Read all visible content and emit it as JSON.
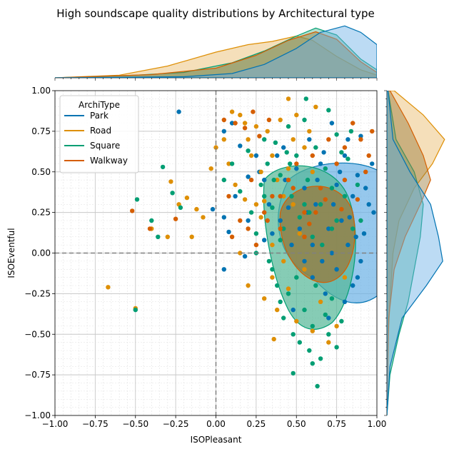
{
  "chart_data": {
    "type": "scatter",
    "title": "High soundscape quality distributions by Architectural type",
    "xlabel": "ISOPleasant",
    "ylabel": "ISOEventful",
    "xlim": [
      -1.0,
      1.0
    ],
    "ylim": [
      -1.0,
      1.0
    ],
    "x_ticks": [
      "−1.00",
      "−0.75",
      "−0.50",
      "−0.25",
      "0.00",
      "0.25",
      "0.50",
      "0.75",
      "1.00"
    ],
    "y_ticks": [
      "−1.00",
      "−0.75",
      "−0.50",
      "−0.25",
      "0.00",
      "0.25",
      "0.50",
      "0.75",
      "1.00"
    ],
    "x_tick_values": [
      -1.0,
      -0.75,
      -0.5,
      -0.25,
      0.0,
      0.25,
      0.5,
      0.75,
      1.0
    ],
    "y_tick_values": [
      -1.0,
      -0.75,
      -0.5,
      -0.25,
      0.0,
      0.25,
      0.5,
      0.75,
      1.0
    ],
    "grid": true,
    "reference_lines": {
      "x": 0.0,
      "y": 0.0
    },
    "legend": {
      "title": "ArchiType",
      "placement": "top-left"
    },
    "marginal_plots": "kde (top: ISOPleasant, right: ISOEventful)",
    "series": [
      {
        "name": "Park",
        "color": "#0173b2",
        "points": [
          [
            -0.23,
            0.87
          ],
          [
            0.05,
            0.75
          ],
          [
            0.1,
            0.8
          ],
          [
            0.15,
            0.66
          ],
          [
            0.2,
            0.47
          ],
          [
            0.25,
            0.6
          ],
          [
            0.3,
            0.45
          ],
          [
            0.35,
            0.12
          ],
          [
            0.42,
            0.65
          ],
          [
            0.45,
            0.28
          ],
          [
            0.5,
            0.52
          ],
          [
            0.55,
            0.4
          ],
          [
            0.58,
            0.7
          ],
          [
            0.62,
            0.3
          ],
          [
            0.65,
            0.55
          ],
          [
            0.7,
            0.15
          ],
          [
            0.72,
            0.8
          ],
          [
            0.75,
            0.42
          ],
          [
            0.78,
            0.2
          ],
          [
            0.8,
            0.6
          ],
          [
            0.82,
            0.05
          ],
          [
            0.85,
            0.35
          ],
          [
            0.88,
            0.48
          ],
          [
            0.9,
            0.72
          ],
          [
            0.92,
            0.12
          ],
          [
            0.95,
            0.3
          ],
          [
            0.97,
            0.55
          ],
          [
            0.55,
            -0.05
          ],
          [
            0.6,
            -0.15
          ],
          [
            0.68,
            -0.25
          ],
          [
            0.75,
            -0.1
          ],
          [
            0.85,
            -0.2
          ],
          [
            0.9,
            -0.05
          ],
          [
            0.05,
            0.22
          ],
          [
            0.12,
            0.35
          ],
          [
            -0.02,
            0.27
          ],
          [
            0.08,
            0.13
          ],
          [
            0.18,
            -0.02
          ],
          [
            0.3,
            0.08
          ],
          [
            0.4,
            0.2
          ],
          [
            0.47,
            0.05
          ],
          [
            0.52,
            0.15
          ],
          [
            0.57,
            0.25
          ],
          [
            0.63,
            0.45
          ],
          [
            0.67,
            0.62
          ],
          [
            0.73,
            0.3
          ],
          [
            0.77,
            0.5
          ],
          [
            0.83,
            0.22
          ],
          [
            0.87,
            0.1
          ],
          [
            0.93,
            0.4
          ],
          [
            0.98,
            0.25
          ],
          [
            0.6,
            0.05
          ],
          [
            0.66,
            -0.05
          ],
          [
            0.72,
            0.0
          ],
          [
            0.8,
            -0.3
          ],
          [
            0.88,
            -0.15
          ],
          [
            0.05,
            -0.1
          ],
          [
            0.2,
            0.2
          ],
          [
            0.27,
            0.5
          ],
          [
            0.33,
            0.3
          ],
          [
            0.38,
            0.6
          ],
          [
            0.43,
            0.45
          ],
          [
            0.7,
            -0.4
          ],
          [
            0.48,
            -0.35
          ],
          [
            0.82,
            0.7
          ]
        ]
      },
      {
        "name": "Road",
        "color": "#de8f05",
        "points": [
          [
            -0.67,
            -0.21
          ],
          [
            -0.5,
            -0.34
          ],
          [
            -0.4,
            0.15
          ],
          [
            -0.3,
            0.1
          ],
          [
            -0.28,
            0.44
          ],
          [
            -0.18,
            0.34
          ],
          [
            -0.12,
            0.27
          ],
          [
            -0.08,
            0.22
          ],
          [
            -0.03,
            0.52
          ],
          [
            0.0,
            0.65
          ],
          [
            0.05,
            0.7
          ],
          [
            0.08,
            0.55
          ],
          [
            0.1,
            0.87
          ],
          [
            0.12,
            0.42
          ],
          [
            0.15,
            0.85
          ],
          [
            0.18,
            0.8
          ],
          [
            0.2,
            0.7
          ],
          [
            0.22,
            0.6
          ],
          [
            0.25,
            0.78
          ],
          [
            0.28,
            0.5
          ],
          [
            0.3,
            0.32
          ],
          [
            0.32,
            0.75
          ],
          [
            0.35,
            0.6
          ],
          [
            0.38,
            0.45
          ],
          [
            0.4,
            0.82
          ],
          [
            0.42,
            0.35
          ],
          [
            0.45,
            0.52
          ],
          [
            0.48,
            0.3
          ],
          [
            0.45,
            0.95
          ],
          [
            0.5,
            0.85
          ],
          [
            0.55,
            0.65
          ],
          [
            0.58,
            0.75
          ],
          [
            0.6,
            0.5
          ],
          [
            0.62,
            0.9
          ],
          [
            0.15,
            0.0
          ],
          [
            0.2,
            -0.2
          ],
          [
            0.3,
            -0.28
          ],
          [
            0.35,
            -0.15
          ],
          [
            0.38,
            -0.35
          ],
          [
            0.42,
            -0.05
          ],
          [
            0.45,
            -0.22
          ],
          [
            0.5,
            -0.42
          ],
          [
            0.55,
            -0.1
          ],
          [
            0.6,
            -0.48
          ],
          [
            0.65,
            -0.3
          ],
          [
            0.7,
            -0.55
          ],
          [
            0.75,
            -0.45
          ],
          [
            0.8,
            -0.15
          ],
          [
            0.36,
            -0.53
          ],
          [
            0.25,
            0.3
          ],
          [
            0.35,
            0.05
          ],
          [
            0.48,
            0.7
          ],
          [
            0.28,
            0.22
          ],
          [
            0.52,
            0.12
          ],
          [
            0.18,
            0.33
          ],
          [
            -0.23,
            0.3
          ],
          [
            -0.15,
            0.1
          ]
        ]
      },
      {
        "name": "Square",
        "color": "#029e73",
        "points": [
          [
            -0.5,
            -0.35
          ],
          [
            -0.49,
            0.33
          ],
          [
            -0.4,
            0.2
          ],
          [
            -0.36,
            0.1
          ],
          [
            -0.33,
            0.53
          ],
          [
            -0.27,
            0.37
          ],
          [
            -0.22,
            0.28
          ],
          [
            0.05,
            0.45
          ],
          [
            0.1,
            0.55
          ],
          [
            0.15,
            0.38
          ],
          [
            0.2,
            0.63
          ],
          [
            0.22,
            0.25
          ],
          [
            0.25,
            0.12
          ],
          [
            0.28,
            0.42
          ],
          [
            0.3,
            0.7
          ],
          [
            0.32,
            0.55
          ],
          [
            0.35,
            0.28
          ],
          [
            0.37,
            0.68
          ],
          [
            0.4,
            0.48
          ],
          [
            0.42,
            0.15
          ],
          [
            0.45,
            0.78
          ],
          [
            0.47,
            0.35
          ],
          [
            0.5,
            0.6
          ],
          [
            0.52,
            0.22
          ],
          [
            0.55,
            0.82
          ],
          [
            0.57,
            0.45
          ],
          [
            0.6,
            0.1
          ],
          [
            0.62,
            0.65
          ],
          [
            0.65,
            0.3
          ],
          [
            0.68,
            0.52
          ],
          [
            0.7,
            0.88
          ],
          [
            0.72,
            0.4
          ],
          [
            0.75,
            0.2
          ],
          [
            0.78,
            0.62
          ],
          [
            0.8,
            0.35
          ],
          [
            0.82,
            0.58
          ],
          [
            0.85,
            0.15
          ],
          [
            0.88,
            0.42
          ],
          [
            0.75,
            0.73
          ],
          [
            0.35,
            -0.1
          ],
          [
            0.38,
            -0.2
          ],
          [
            0.4,
            -0.3
          ],
          [
            0.42,
            -0.4
          ],
          [
            0.45,
            -0.25
          ],
          [
            0.48,
            -0.5
          ],
          [
            0.5,
            -0.15
          ],
          [
            0.52,
            -0.55
          ],
          [
            0.55,
            -0.35
          ],
          [
            0.58,
            -0.6
          ],
          [
            0.6,
            -0.45
          ],
          [
            0.62,
            -0.2
          ],
          [
            0.65,
            -0.65
          ],
          [
            0.68,
            -0.38
          ],
          [
            0.7,
            -0.5
          ],
          [
            0.72,
            -0.28
          ],
          [
            0.75,
            -0.58
          ],
          [
            0.78,
            -0.42
          ],
          [
            0.48,
            -0.74
          ],
          [
            0.6,
            -0.68
          ],
          [
            0.63,
            -0.82
          ],
          [
            0.56,
            0.95
          ],
          [
            0.25,
            0.0
          ],
          [
            0.3,
            0.35
          ],
          [
            0.33,
            -0.05
          ],
          [
            0.4,
            0.08
          ],
          [
            0.46,
            0.55
          ],
          [
            0.58,
            0.25
          ],
          [
            0.66,
            0.05
          ],
          [
            0.72,
            0.15
          ],
          [
            0.84,
            0.75
          ],
          [
            0.9,
            0.2
          ],
          [
            0.55,
            0.3
          ],
          [
            0.44,
            0.62
          ],
          [
            0.36,
            0.45
          ]
        ]
      },
      {
        "name": "Walkway",
        "color": "#d55e00",
        "points": [
          [
            -0.52,
            0.26
          ],
          [
            -0.41,
            0.15
          ],
          [
            -0.25,
            0.21
          ],
          [
            0.1,
            0.1
          ],
          [
            0.15,
            0.2
          ],
          [
            0.2,
            0.15
          ],
          [
            0.25,
            0.05
          ],
          [
            0.3,
            0.25
          ],
          [
            0.35,
            0.35
          ],
          [
            0.4,
            0.15
          ],
          [
            0.45,
            0.45
          ],
          [
            0.5,
            0.55
          ],
          [
            0.55,
            0.25
          ],
          [
            0.6,
            0.6
          ],
          [
            0.65,
            0.4
          ],
          [
            0.7,
            0.7
          ],
          [
            0.75,
            0.55
          ],
          [
            0.8,
            0.65
          ],
          [
            0.85,
            0.8
          ],
          [
            0.9,
            0.7
          ],
          [
            0.95,
            0.6
          ],
          [
            0.97,
            0.75
          ],
          [
            0.05,
            0.82
          ],
          [
            0.12,
            0.8
          ],
          [
            0.18,
            0.77
          ],
          [
            0.23,
            0.87
          ],
          [
            0.27,
            0.72
          ],
          [
            0.33,
            0.82
          ],
          [
            0.48,
            0.4
          ],
          [
            0.58,
            0.18
          ],
          [
            0.68,
            0.33
          ],
          [
            0.78,
            0.27
          ],
          [
            0.88,
            0.33
          ],
          [
            0.93,
            0.5
          ],
          [
            0.8,
            0.45
          ],
          [
            0.62,
            0.25
          ],
          [
            0.55,
            0.1
          ],
          [
            0.4,
            0.35
          ],
          [
            0.32,
            0.2
          ],
          [
            0.22,
            0.45
          ],
          [
            0.08,
            0.35
          ]
        ]
      }
    ],
    "density_regions": [
      {
        "name": "Park",
        "color": "#0173b2",
        "fill": "#6ab0e6",
        "center": [
          0.8,
          0.15
        ],
        "extent": "high"
      },
      {
        "name": "Square",
        "color": "#029e73",
        "fill": "#52b795",
        "center": [
          0.6,
          0.05
        ],
        "extent": "high"
      },
      {
        "name": "Walkway",
        "color": "#d55e00",
        "fill": "#9a7a3a",
        "center": [
          0.63,
          0.13
        ],
        "extent": "high"
      }
    ],
    "marginal_x": [
      {
        "name": "Park",
        "color": "#0173b2",
        "peak": 0.8
      },
      {
        "name": "Road",
        "color": "#de8f05",
        "peak": 0.35
      },
      {
        "name": "Square",
        "color": "#029e73",
        "peak": 0.62
      },
      {
        "name": "Walkway",
        "color": "#d55e00",
        "peak": 0.62
      }
    ],
    "marginal_y": [
      {
        "name": "Park",
        "color": "#0173b2",
        "peak": 0.0
      },
      {
        "name": "Road",
        "color": "#de8f05",
        "peak": 0.6
      },
      {
        "name": "Square",
        "color": "#029e73",
        "peak": 0.2
      },
      {
        "name": "Walkway",
        "color": "#d55e00",
        "peak": 0.3
      }
    ]
  }
}
